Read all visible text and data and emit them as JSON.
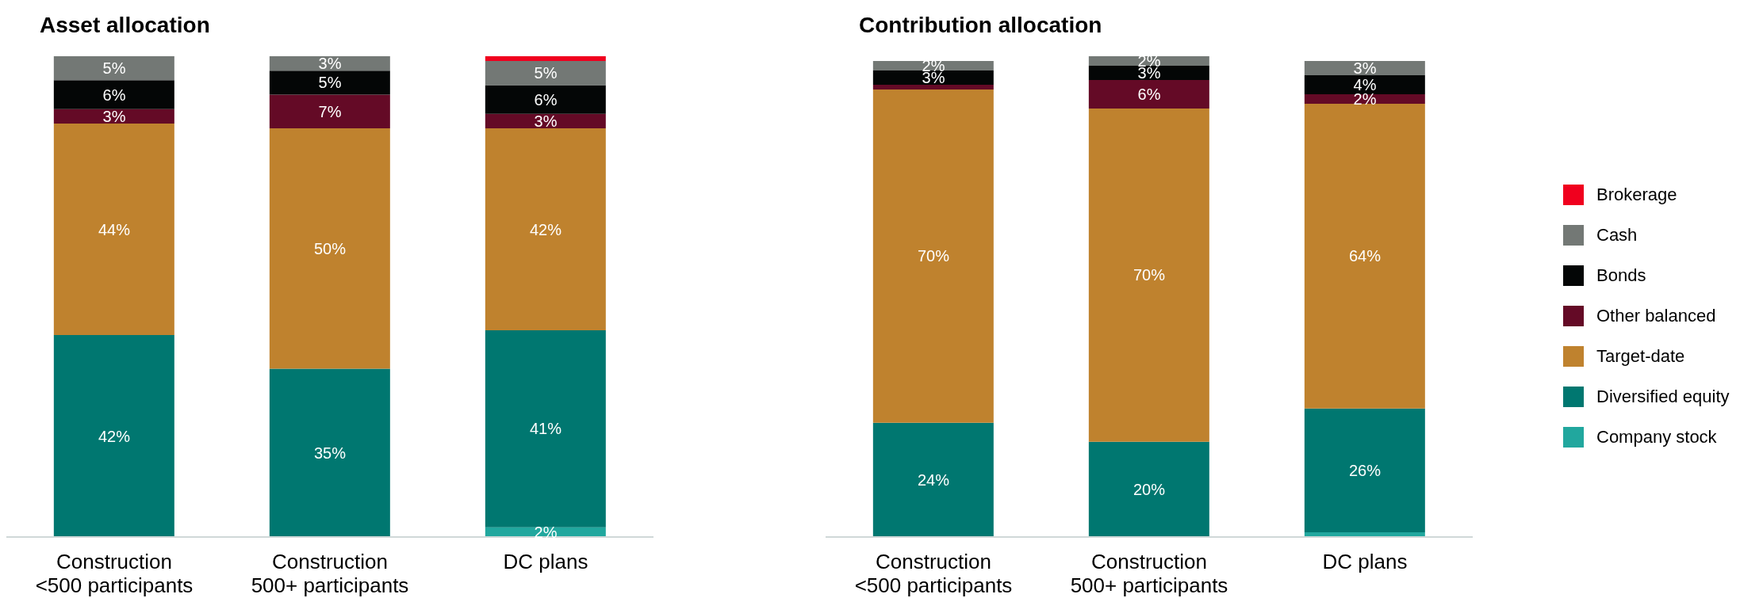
{
  "chart_data": [
    {
      "type": "bar",
      "title": "Asset allocation",
      "stacked": true,
      "legend": false,
      "categories": [
        "Construction <500 participants",
        "Construction 500+ participants",
        "DC plans"
      ],
      "series": [
        {
          "color": "#21a79e",
          "values": [
            0,
            0,
            2
          ],
          "value_labels": [
            null,
            null,
            "2%"
          ]
        },
        {
          "color": "#007770",
          "values": [
            42,
            35,
            41
          ],
          "value_labels": [
            "42%",
            "35%",
            "41%"
          ]
        },
        {
          "color": "#bf822e",
          "values": [
            44,
            50,
            42
          ],
          "value_labels": [
            "44%",
            "50%",
            "42%"
          ]
        },
        {
          "color": "#640a26",
          "values": [
            3,
            7,
            3
          ],
          "value_labels": [
            "3%",
            "7%",
            "3%"
          ]
        },
        {
          "color": "#040606",
          "values": [
            6,
            5,
            6
          ],
          "value_labels": [
            "6%",
            "5%",
            "6%"
          ]
        },
        {
          "color": "#737875",
          "values": [
            5,
            3,
            5
          ],
          "value_labels": [
            "5%",
            "3%",
            "5%"
          ]
        },
        {
          "color": "#f0001e",
          "values": [
            0,
            0,
            1
          ],
          "value_labels": [
            null,
            null,
            null
          ]
        }
      ]
    },
    {
      "type": "bar",
      "title": "Contribution allocation",
      "stacked": true,
      "legend": "right",
      "categories": [
        "Construction <500 participants",
        "Construction 500+ participants",
        "DC plans"
      ],
      "series": [
        {
          "name": "Company stock",
          "color": "#21a79e",
          "values": [
            0,
            0,
            1
          ],
          "value_labels": [
            null,
            null,
            null
          ]
        },
        {
          "name": "Diversified equity",
          "color": "#007770",
          "values": [
            24,
            20,
            26
          ],
          "value_labels": [
            "24%",
            "20%",
            "26%"
          ]
        },
        {
          "name": "Target-date",
          "color": "#bf822e",
          "values": [
            70,
            70,
            64
          ],
          "value_labels": [
            "70%",
            "70%",
            "64%"
          ]
        },
        {
          "name": "Other balanced",
          "color": "#640a26",
          "values": [
            1,
            6,
            2
          ],
          "value_labels": [
            null,
            "6%",
            "2%"
          ]
        },
        {
          "name": "Bonds",
          "color": "#040606",
          "values": [
            3,
            3,
            4
          ],
          "value_labels": [
            "3%",
            "3%",
            "4%"
          ]
        },
        {
          "name": "Cash",
          "color": "#737875",
          "values": [
            2,
            2,
            3
          ],
          "value_labels": [
            "2%",
            "2%",
            "3%"
          ]
        },
        {
          "name": "Brokerage",
          "color": "#f0001e",
          "values": [
            0,
            0,
            0
          ],
          "value_labels": [
            null,
            null,
            null
          ]
        }
      ]
    }
  ]
}
